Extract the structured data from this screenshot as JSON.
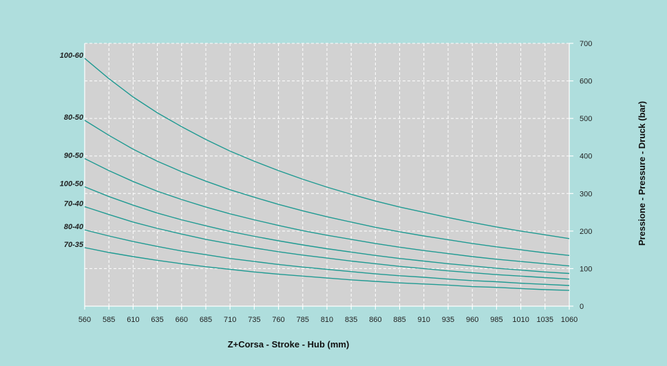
{
  "chart_data": {
    "type": "line",
    "xlabel": "Z+Corsa - Stroke - Hub  (mm)",
    "ylabel": "Pressione - Pressure - Druck (bar)",
    "xlim": [
      560,
      1060
    ],
    "ylim": [
      0,
      700
    ],
    "x_ticks": [
      "560",
      "585",
      "610",
      "635",
      "660",
      "685",
      "710",
      "735",
      "760",
      "785",
      "810",
      "835",
      "860",
      "885",
      "910",
      "935",
      "960",
      "985",
      "1010",
      "1035",
      "1060"
    ],
    "y_ticks": [
      "0",
      "100",
      "200",
      "300",
      "400",
      "500",
      "600",
      "700"
    ],
    "y_axis_side": "right",
    "grid": true,
    "x": [
      560,
      585,
      610,
      635,
      660,
      685,
      710,
      735,
      760,
      785,
      810,
      835,
      860,
      885,
      910,
      935,
      960,
      985,
      1010,
      1035,
      1060
    ],
    "series": [
      {
        "name": "100-60",
        "values": [
          660,
          606,
          557,
          515,
          478,
          444,
          413,
          386,
          361,
          338,
          317,
          298,
          280,
          264,
          250,
          236,
          223,
          211,
          200,
          190,
          180
        ]
      },
      {
        "name": "80-50",
        "values": [
          495,
          455,
          418,
          386,
          358,
          333,
          310,
          290,
          271,
          254,
          238,
          224,
          210,
          198,
          187,
          177,
          167,
          158,
          150,
          142,
          135
        ]
      },
      {
        "name": "90-50",
        "values": [
          393,
          361,
          332,
          306,
          284,
          264,
          246,
          230,
          215,
          201,
          189,
          178,
          167,
          157,
          148,
          140,
          132,
          125,
          119,
          113,
          107
        ]
      },
      {
        "name": "100-50",
        "values": [
          318,
          292,
          269,
          248,
          230,
          214,
          199,
          186,
          174,
          163,
          153,
          144,
          135,
          127,
          120,
          113,
          107,
          101,
          96,
          91,
          87
        ]
      },
      {
        "name": "70-40",
        "values": [
          265,
          244,
          224,
          207,
          192,
          178,
          166,
          155,
          145,
          136,
          128,
          120,
          113,
          106,
          100,
          94,
          89,
          84,
          80,
          76,
          72
        ]
      },
      {
        "name": "80-40",
        "values": [
          203,
          187,
          172,
          159,
          147,
          137,
          127,
          119,
          111,
          104,
          98,
          92,
          86,
          81,
          77,
          72,
          68,
          65,
          61,
          58,
          55
        ]
      },
      {
        "name": "70-35",
        "values": [
          156,
          143,
          132,
          122,
          113,
          105,
          98,
          91,
          85,
          80,
          75,
          70,
          66,
          62,
          59,
          56,
          52,
          50,
          47,
          44,
          42
        ]
      }
    ],
    "colors": {
      "background": "#afdedd",
      "plot_area": "#d2d2d2",
      "grid": "#ffffff",
      "line": "#1f9a92",
      "axis": "#ffffff"
    }
  }
}
